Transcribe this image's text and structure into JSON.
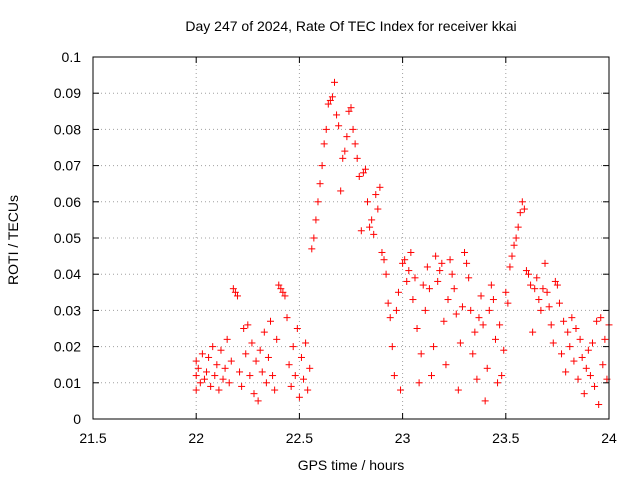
{
  "chart_data": {
    "type": "scatter",
    "title": "Day 247 of 2024, Rate Of TEC Index for receiver kkai",
    "xlabel": "GPS time / hours",
    "ylabel": "ROTI / TECUs",
    "xlim": [
      21.5,
      24
    ],
    "ylim": [
      0,
      0.1
    ],
    "x_ticks": [
      21.5,
      22,
      22.5,
      23,
      23.5,
      24
    ],
    "x_tick_labels": [
      "21.5",
      "22",
      "22.5",
      "23",
      "23.5",
      "24"
    ],
    "y_ticks": [
      0,
      0.01,
      0.02,
      0.03,
      0.04,
      0.05,
      0.06,
      0.07,
      0.08,
      0.09,
      0.1
    ],
    "y_tick_labels": [
      "0",
      "0.01",
      "0.02",
      "0.03",
      "0.04",
      "0.05",
      "0.06",
      "0.07",
      "0.08",
      "0.09",
      "0.1"
    ],
    "grid": true,
    "marker": "+",
    "marker_color": "#ff0000",
    "series": [
      {
        "name": "ROTI",
        "points": [
          [
            22.0,
            0.012
          ],
          [
            22.0,
            0.016
          ],
          [
            22.0,
            0.008
          ],
          [
            22.01,
            0.014
          ],
          [
            22.02,
            0.01
          ],
          [
            22.03,
            0.018
          ],
          [
            22.04,
            0.011
          ],
          [
            22.05,
            0.013
          ],
          [
            22.06,
            0.017
          ],
          [
            22.07,
            0.009
          ],
          [
            22.08,
            0.02
          ],
          [
            22.09,
            0.012
          ],
          [
            22.1,
            0.015
          ],
          [
            22.11,
            0.008
          ],
          [
            22.12,
            0.019
          ],
          [
            22.13,
            0.011
          ],
          [
            22.14,
            0.014
          ],
          [
            22.15,
            0.022
          ],
          [
            22.16,
            0.01
          ],
          [
            22.17,
            0.016
          ],
          [
            22.18,
            0.036
          ],
          [
            22.19,
            0.035
          ],
          [
            22.2,
            0.034
          ],
          [
            22.21,
            0.013
          ],
          [
            22.22,
            0.009
          ],
          [
            22.23,
            0.025
          ],
          [
            22.24,
            0.018
          ],
          [
            22.25,
            0.026
          ],
          [
            22.26,
            0.012
          ],
          [
            22.27,
            0.021
          ],
          [
            22.28,
            0.007
          ],
          [
            22.29,
            0.016
          ],
          [
            22.3,
            0.005
          ],
          [
            22.31,
            0.019
          ],
          [
            22.32,
            0.013
          ],
          [
            22.33,
            0.024
          ],
          [
            22.34,
            0.01
          ],
          [
            22.35,
            0.017
          ],
          [
            22.36,
            0.027
          ],
          [
            22.37,
            0.012
          ],
          [
            22.38,
            0.008
          ],
          [
            22.39,
            0.022
          ],
          [
            22.4,
            0.037
          ],
          [
            22.41,
            0.036
          ],
          [
            22.42,
            0.035
          ],
          [
            22.43,
            0.034
          ],
          [
            22.44,
            0.028
          ],
          [
            22.45,
            0.015
          ],
          [
            22.46,
            0.009
          ],
          [
            22.47,
            0.02
          ],
          [
            22.48,
            0.012
          ],
          [
            22.49,
            0.025
          ],
          [
            22.5,
            0.006
          ],
          [
            22.51,
            0.017
          ],
          [
            22.52,
            0.011
          ],
          [
            22.53,
            0.021
          ],
          [
            22.54,
            0.008
          ],
          [
            22.55,
            0.014
          ],
          [
            22.56,
            0.047
          ],
          [
            22.57,
            0.05
          ],
          [
            22.58,
            0.055
          ],
          [
            22.59,
            0.06
          ],
          [
            22.6,
            0.065
          ],
          [
            22.61,
            0.07
          ],
          [
            22.62,
            0.076
          ],
          [
            22.63,
            0.08
          ],
          [
            22.64,
            0.087
          ],
          [
            22.65,
            0.088
          ],
          [
            22.66,
            0.089
          ],
          [
            22.67,
            0.093
          ],
          [
            22.68,
            0.084
          ],
          [
            22.69,
            0.081
          ],
          [
            22.7,
            0.063
          ],
          [
            22.71,
            0.072
          ],
          [
            22.72,
            0.074
          ],
          [
            22.73,
            0.078
          ],
          [
            22.74,
            0.085
          ],
          [
            22.75,
            0.086
          ],
          [
            22.76,
            0.08
          ],
          [
            22.77,
            0.076
          ],
          [
            22.78,
            0.072
          ],
          [
            22.79,
            0.067
          ],
          [
            22.8,
            0.052
          ],
          [
            22.81,
            0.068
          ],
          [
            22.82,
            0.069
          ],
          [
            22.83,
            0.06
          ],
          [
            22.84,
            0.053
          ],
          [
            22.85,
            0.055
          ],
          [
            22.86,
            0.051
          ],
          [
            22.87,
            0.062
          ],
          [
            22.88,
            0.058
          ],
          [
            22.89,
            0.064
          ],
          [
            22.9,
            0.046
          ],
          [
            22.91,
            0.044
          ],
          [
            22.92,
            0.04
          ],
          [
            22.93,
            0.032
          ],
          [
            22.94,
            0.028
          ],
          [
            22.95,
            0.02
          ],
          [
            22.96,
            0.012
          ],
          [
            22.97,
            0.03
          ],
          [
            22.98,
            0.035
          ],
          [
            22.99,
            0.008
          ],
          [
            23.0,
            0.043
          ],
          [
            23.01,
            0.044
          ],
          [
            23.02,
            0.038
          ],
          [
            23.03,
            0.041
          ],
          [
            23.04,
            0.046
          ],
          [
            23.05,
            0.033
          ],
          [
            23.06,
            0.039
          ],
          [
            23.07,
            0.025
          ],
          [
            23.08,
            0.01
          ],
          [
            23.09,
            0.018
          ],
          [
            23.1,
            0.037
          ],
          [
            23.11,
            0.03
          ],
          [
            23.12,
            0.042
          ],
          [
            23.13,
            0.036
          ],
          [
            23.14,
            0.012
          ],
          [
            23.15,
            0.02
          ],
          [
            23.16,
            0.045
          ],
          [
            23.17,
            0.038
          ],
          [
            23.18,
            0.041
          ],
          [
            23.19,
            0.043
          ],
          [
            23.2,
            0.027
          ],
          [
            23.21,
            0.015
          ],
          [
            23.22,
            0.033
          ],
          [
            23.23,
            0.044
          ],
          [
            23.24,
            0.04
          ],
          [
            23.25,
            0.036
          ],
          [
            23.26,
            0.029
          ],
          [
            23.27,
            0.008
          ],
          [
            23.28,
            0.021
          ],
          [
            23.29,
            0.031
          ],
          [
            23.3,
            0.046
          ],
          [
            23.31,
            0.043
          ],
          [
            23.32,
            0.039
          ],
          [
            23.33,
            0.03
          ],
          [
            23.34,
            0.018
          ],
          [
            23.35,
            0.024
          ],
          [
            23.36,
            0.011
          ],
          [
            23.37,
            0.028
          ],
          [
            23.38,
            0.034
          ],
          [
            23.39,
            0.026
          ],
          [
            23.4,
            0.005
          ],
          [
            23.41,
            0.014
          ],
          [
            23.42,
            0.03
          ],
          [
            23.43,
            0.037
          ],
          [
            23.44,
            0.033
          ],
          [
            23.45,
            0.022
          ],
          [
            23.46,
            0.01
          ],
          [
            23.47,
            0.026
          ],
          [
            23.48,
            0.012
          ],
          [
            23.49,
            0.019
          ],
          [
            23.5,
            0.035
          ],
          [
            23.51,
            0.032
          ],
          [
            23.52,
            0.042
          ],
          [
            23.53,
            0.045
          ],
          [
            23.54,
            0.048
          ],
          [
            23.55,
            0.05
          ],
          [
            23.56,
            0.053
          ],
          [
            23.57,
            0.057
          ],
          [
            23.58,
            0.06
          ],
          [
            23.59,
            0.058
          ],
          [
            23.6,
            0.041
          ],
          [
            23.61,
            0.04
          ],
          [
            23.62,
            0.037
          ],
          [
            23.63,
            0.024
          ],
          [
            23.64,
            0.036
          ],
          [
            23.65,
            0.039
          ],
          [
            23.66,
            0.033
          ],
          [
            23.67,
            0.03
          ],
          [
            23.68,
            0.036
          ],
          [
            23.69,
            0.043
          ],
          [
            23.7,
            0.035
          ],
          [
            23.71,
            0.031
          ],
          [
            23.72,
            0.026
          ],
          [
            23.73,
            0.021
          ],
          [
            23.74,
            0.038
          ],
          [
            23.75,
            0.037
          ],
          [
            23.76,
            0.032
          ],
          [
            23.77,
            0.018
          ],
          [
            23.78,
            0.027
          ],
          [
            23.79,
            0.013
          ],
          [
            23.8,
            0.024
          ],
          [
            23.81,
            0.02
          ],
          [
            23.82,
            0.028
          ],
          [
            23.83,
            0.016
          ],
          [
            23.84,
            0.025
          ],
          [
            23.85,
            0.011
          ],
          [
            23.86,
            0.022
          ],
          [
            23.87,
            0.017
          ],
          [
            23.88,
            0.007
          ],
          [
            23.89,
            0.014
          ],
          [
            23.9,
            0.019
          ],
          [
            23.91,
            0.012
          ],
          [
            23.92,
            0.021
          ],
          [
            23.93,
            0.009
          ],
          [
            23.94,
            0.027
          ],
          [
            23.95,
            0.004
          ],
          [
            23.96,
            0.028
          ],
          [
            23.97,
            0.015
          ],
          [
            23.98,
            0.022
          ],
          [
            23.99,
            0.011
          ],
          [
            24.0,
            0.026
          ]
        ]
      }
    ]
  }
}
